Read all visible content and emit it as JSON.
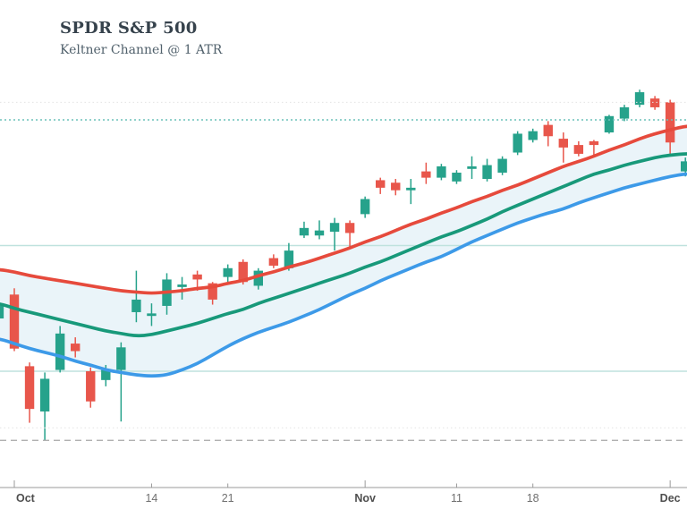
{
  "header": {
    "title": "SPDR S&P 500",
    "subtitle": "Keltner Channel @ 1 ATR"
  },
  "colors": {
    "candle_up": "#26a28b",
    "candle_down": "#e8564b",
    "band_upper": "#e64a3c",
    "band_middle": "#18997a",
    "band_lower": "#3d9ae8",
    "band_fill": "#eaf4f9",
    "grid_solid_teal": "#bfe2de",
    "grid_dashed_teal": "#6cc2ba",
    "grid_dashed_gray": "#a6a6a6",
    "grid_dotted_faint": "#e4e4e4",
    "axis_line": "#9a9a9a",
    "axis_label_month": "#4f4f4f",
    "axis_label_week": "#707070"
  },
  "chart_data": {
    "type": "candlestick",
    "title": "SPDR S&P 500",
    "indicator": "Keltner Channel @ 1 ATR",
    "ylim": [
      281.0,
      319.5
    ],
    "grid": "horizontal-only",
    "legend_position": "none",
    "y_axis_labels_visible": false,
    "gridlines": [
      {
        "price": 311.4,
        "style": "dotted-faint"
      },
      {
        "price": 310.0,
        "style": "dashed-teal"
      },
      {
        "price": 300.0,
        "style": "solid-teal"
      },
      {
        "price": 290.0,
        "style": "solid-teal"
      },
      {
        "price": 285.5,
        "style": "dotted-faint"
      },
      {
        "price": 284.5,
        "style": "dashed-gray"
      }
    ],
    "x_axis": {
      "ticks": [
        {
          "label": "Oct",
          "day_index": 0,
          "type": "month"
        },
        {
          "label": "14",
          "day_index": 9,
          "type": "week"
        },
        {
          "label": "21",
          "day_index": 14,
          "type": "week"
        },
        {
          "label": "Nov",
          "day_index": 23,
          "type": "month"
        },
        {
          "label": "11",
          "day_index": 29,
          "type": "week"
        },
        {
          "label": "18",
          "day_index": 34,
          "type": "week"
        },
        {
          "label": "Dec",
          "day_index": 43,
          "type": "month"
        }
      ]
    },
    "candles": [
      {
        "d": "Sep 30",
        "o": 294.2,
        "h": 295.3,
        "l": 293.9,
        "c": 295.2
      },
      {
        "d": "Oct 1",
        "o": 296.1,
        "h": 296.6,
        "l": 291.6,
        "c": 291.8
      },
      {
        "d": "Oct 2",
        "o": 290.4,
        "h": 290.7,
        "l": 285.9,
        "c": 287.0
      },
      {
        "d": "Oct 3",
        "o": 286.8,
        "h": 289.9,
        "l": 284.5,
        "c": 289.4
      },
      {
        "d": "Oct 4",
        "o": 290.1,
        "h": 293.6,
        "l": 289.9,
        "c": 293.0
      },
      {
        "d": "Oct 7",
        "o": 292.2,
        "h": 292.7,
        "l": 291.1,
        "c": 291.6
      },
      {
        "d": "Oct 8",
        "o": 290.0,
        "h": 290.3,
        "l": 287.1,
        "c": 287.6
      },
      {
        "d": "Oct 9",
        "o": 289.3,
        "h": 290.5,
        "l": 288.8,
        "c": 290.1
      },
      {
        "d": "Oct 10",
        "o": 290.1,
        "h": 292.3,
        "l": 286.0,
        "c": 291.9
      },
      {
        "d": "Oct 11",
        "o": 294.7,
        "h": 298.0,
        "l": 293.9,
        "c": 295.7
      },
      {
        "d": "Oct 14",
        "o": 294.4,
        "h": 295.4,
        "l": 293.6,
        "c": 294.6
      },
      {
        "d": "Oct 15",
        "o": 295.2,
        "h": 297.8,
        "l": 294.5,
        "c": 297.3
      },
      {
        "d": "Oct 16",
        "o": 296.7,
        "h": 297.5,
        "l": 295.7,
        "c": 296.9
      },
      {
        "d": "Oct 17",
        "o": 297.7,
        "h": 298.0,
        "l": 296.4,
        "c": 297.3
      },
      {
        "d": "Oct 18",
        "o": 297.0,
        "h": 297.1,
        "l": 295.3,
        "c": 295.7
      },
      {
        "d": "Oct 21",
        "o": 297.5,
        "h": 298.5,
        "l": 297.1,
        "c": 298.2
      },
      {
        "d": "Oct 22",
        "o": 298.7,
        "h": 298.9,
        "l": 296.9,
        "c": 297.1
      },
      {
        "d": "Oct 23",
        "o": 296.8,
        "h": 298.2,
        "l": 296.5,
        "c": 298.0
      },
      {
        "d": "Oct 24",
        "o": 299.0,
        "h": 299.3,
        "l": 298.2,
        "c": 298.4
      },
      {
        "d": "Oct 25",
        "o": 298.2,
        "h": 300.2,
        "l": 298.0,
        "c": 299.6
      },
      {
        "d": "Oct 28",
        "o": 300.8,
        "h": 301.9,
        "l": 300.6,
        "c": 301.4
      },
      {
        "d": "Oct 29",
        "o": 300.8,
        "h": 302.0,
        "l": 300.5,
        "c": 301.2
      },
      {
        "d": "Oct 30",
        "o": 301.1,
        "h": 302.2,
        "l": 299.6,
        "c": 301.8
      },
      {
        "d": "Oct 31",
        "o": 301.8,
        "h": 302.0,
        "l": 299.8,
        "c": 301.0
      },
      {
        "d": "Nov 1",
        "o": 302.5,
        "h": 303.9,
        "l": 302.2,
        "c": 303.7
      },
      {
        "d": "Nov 4",
        "o": 305.2,
        "h": 305.4,
        "l": 304.1,
        "c": 304.6
      },
      {
        "d": "Nov 5",
        "o": 305.0,
        "h": 305.3,
        "l": 304.0,
        "c": 304.4
      },
      {
        "d": "Nov 6",
        "o": 304.4,
        "h": 305.3,
        "l": 303.3,
        "c": 304.6
      },
      {
        "d": "Nov 7",
        "o": 305.9,
        "h": 306.6,
        "l": 304.9,
        "c": 305.4
      },
      {
        "d": "Nov 8",
        "o": 305.4,
        "h": 306.5,
        "l": 305.2,
        "c": 306.3
      },
      {
        "d": "Nov 11",
        "o": 305.1,
        "h": 306.0,
        "l": 304.9,
        "c": 305.8
      },
      {
        "d": "Nov 12",
        "o": 306.1,
        "h": 307.1,
        "l": 305.3,
        "c": 306.3
      },
      {
        "d": "Nov 13",
        "o": 305.3,
        "h": 306.9,
        "l": 305.1,
        "c": 306.4
      },
      {
        "d": "Nov 14",
        "o": 305.8,
        "h": 307.1,
        "l": 305.6,
        "c": 306.9
      },
      {
        "d": "Nov 15",
        "o": 307.4,
        "h": 309.1,
        "l": 307.2,
        "c": 308.9
      },
      {
        "d": "Nov 18",
        "o": 308.4,
        "h": 309.3,
        "l": 308.2,
        "c": 309.1
      },
      {
        "d": "Nov 19",
        "o": 309.6,
        "h": 309.9,
        "l": 307.9,
        "c": 308.7
      },
      {
        "d": "Nov 20",
        "o": 308.5,
        "h": 309.0,
        "l": 306.6,
        "c": 307.8
      },
      {
        "d": "Nov 21",
        "o": 308.0,
        "h": 308.3,
        "l": 307.1,
        "c": 307.3
      },
      {
        "d": "Nov 22",
        "o": 308.3,
        "h": 308.4,
        "l": 307.2,
        "c": 308.0
      },
      {
        "d": "Nov 25",
        "o": 309.0,
        "h": 310.4,
        "l": 308.9,
        "c": 310.3
      },
      {
        "d": "Nov 26",
        "o": 310.1,
        "h": 311.2,
        "l": 309.9,
        "c": 311.0
      },
      {
        "d": "Nov 27",
        "o": 311.2,
        "h": 312.4,
        "l": 311.0,
        "c": 312.2
      },
      {
        "d": "Nov 29",
        "o": 311.7,
        "h": 311.9,
        "l": 310.8,
        "c": 311.0
      },
      {
        "d": "Dec 2",
        "o": 311.4,
        "h": 311.6,
        "l": 307.1,
        "c": 308.2
      },
      {
        "d": "Dec 3",
        "o": 305.9,
        "h": 307.0,
        "l": 305.5,
        "c": 306.7
      }
    ],
    "keltner": {
      "upper": [
        298.1,
        297.9,
        297.6,
        297.4,
        297.2,
        297.0,
        296.8,
        296.6,
        296.4,
        296.3,
        296.2,
        296.3,
        296.4,
        296.6,
        296.7,
        297.0,
        297.2,
        297.6,
        297.9,
        298.3,
        298.6,
        299.0,
        299.4,
        299.8,
        300.3,
        300.7,
        301.2,
        301.7,
        302.1,
        302.6,
        303.0,
        303.5,
        303.9,
        304.4,
        304.8,
        305.3,
        305.8,
        306.3,
        306.7,
        307.1,
        307.6,
        308.0,
        308.5,
        308.9,
        309.2,
        309.5
      ],
      "middle": [
        295.4,
        295.0,
        294.7,
        294.4,
        294.1,
        293.8,
        293.5,
        293.2,
        293.0,
        292.8,
        292.9,
        293.2,
        293.5,
        293.8,
        294.2,
        294.6,
        294.9,
        295.4,
        295.8,
        296.2,
        296.6,
        297.0,
        297.4,
        297.8,
        298.3,
        298.7,
        299.2,
        299.7,
        300.2,
        300.7,
        301.1,
        301.6,
        302.1,
        302.7,
        303.2,
        303.7,
        304.2,
        304.7,
        305.2,
        305.7,
        306.0,
        306.4,
        306.7,
        307.0,
        307.2,
        307.3
      ],
      "lower": [
        292.6,
        292.2,
        291.8,
        291.5,
        291.2,
        290.8,
        290.5,
        290.1,
        289.9,
        289.7,
        289.6,
        289.7,
        290.1,
        290.6,
        291.3,
        292.0,
        292.6,
        293.1,
        293.5,
        293.9,
        294.4,
        294.9,
        295.5,
        296.1,
        296.6,
        297.2,
        297.7,
        298.2,
        298.7,
        299.1,
        299.7,
        300.3,
        300.8,
        301.3,
        301.8,
        302.2,
        302.6,
        302.9,
        303.4,
        303.8,
        304.2,
        304.6,
        304.9,
        305.2,
        305.5,
        305.7
      ]
    }
  }
}
